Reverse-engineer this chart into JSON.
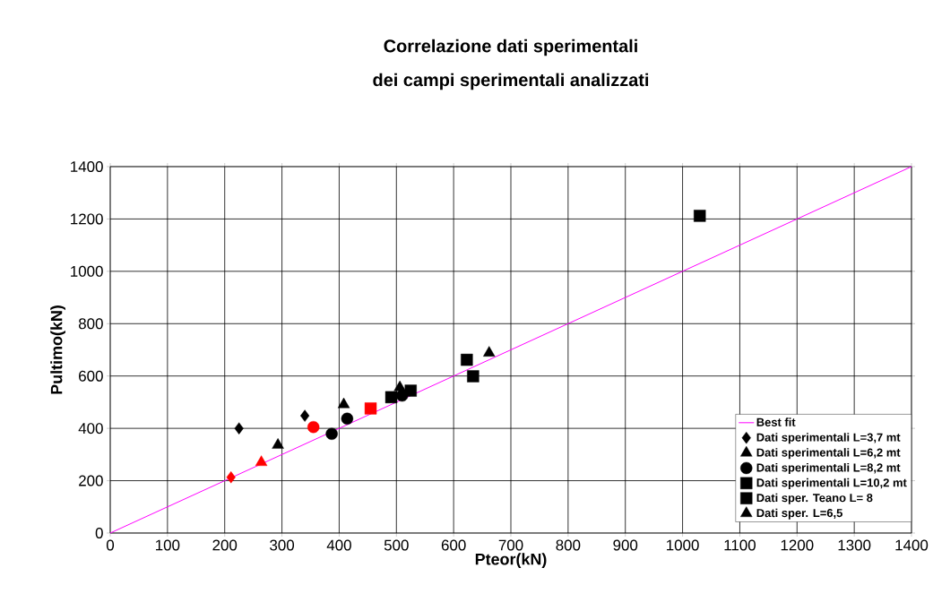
{
  "chart_data": {
    "type": "scatter",
    "title": "Correlazione dati sperimentali\ndei campi sperimentali analizzati",
    "xlabel": "Pteor(kN)",
    "ylabel": "Pultimo(kN)",
    "xlim": [
      0,
      1400
    ],
    "ylim": [
      0,
      1400
    ],
    "xticks": [
      0,
      100,
      200,
      300,
      400,
      500,
      600,
      700,
      800,
      900,
      1000,
      1100,
      1200,
      1300,
      1400
    ],
    "yticks": [
      0,
      200,
      400,
      600,
      800,
      1000,
      1200,
      1400
    ],
    "grid": true,
    "legend": "bottom right",
    "series": [
      {
        "name": "Best fit",
        "type": "line",
        "color": "#ff00ff",
        "marker": "none",
        "x": [
          0,
          1400
        ],
        "values": [
          0,
          1400
        ]
      },
      {
        "name": "Dati sperimentali L=3,7 mt",
        "color": "#000000",
        "marker": "diamond",
        "x": [
          225,
          340
        ],
        "values": [
          400,
          448
        ]
      },
      {
        "name": "Dati sperimentali L=6,2 mt",
        "color": "#000000",
        "marker": "triangle",
        "x": [
          293,
          408
        ],
        "values": [
          336,
          491
        ]
      },
      {
        "name": "Dati sperimentali L=8,2 mt",
        "color": "#000000",
        "marker": "circle",
        "x": [
          387,
          414,
          510
        ],
        "values": [
          379,
          437,
          525
        ]
      },
      {
        "name": "Dati sperimentali L=10,2 mt",
        "color": "#000000",
        "marker": "square",
        "x": [
          491,
          525
        ],
        "values": [
          519,
          544
        ]
      },
      {
        "name": "Dati sper. Teano L= 8",
        "color": "#000000",
        "marker": "square",
        "x": [
          623,
          634,
          1030
        ],
        "values": [
          662,
          599,
          1212
        ]
      },
      {
        "name": "Dati sper. L=6,5",
        "color": "#000000",
        "marker": "triangle",
        "x": [
          506,
          662
        ],
        "values": [
          556,
          688
        ]
      },
      {
        "color": "#ff0000",
        "marker": "diamond",
        "x": [
          211
        ],
        "values": [
          213
        ]
      },
      {
        "color": "#ff0000",
        "marker": "triangle",
        "x": [
          264
        ],
        "values": [
          270
        ]
      },
      {
        "color": "#ff0000",
        "marker": "circle",
        "x": [
          355
        ],
        "values": [
          405
        ]
      },
      {
        "color": "#ff0000",
        "marker": "square",
        "x": [
          455
        ],
        "values": [
          476
        ]
      }
    ]
  }
}
